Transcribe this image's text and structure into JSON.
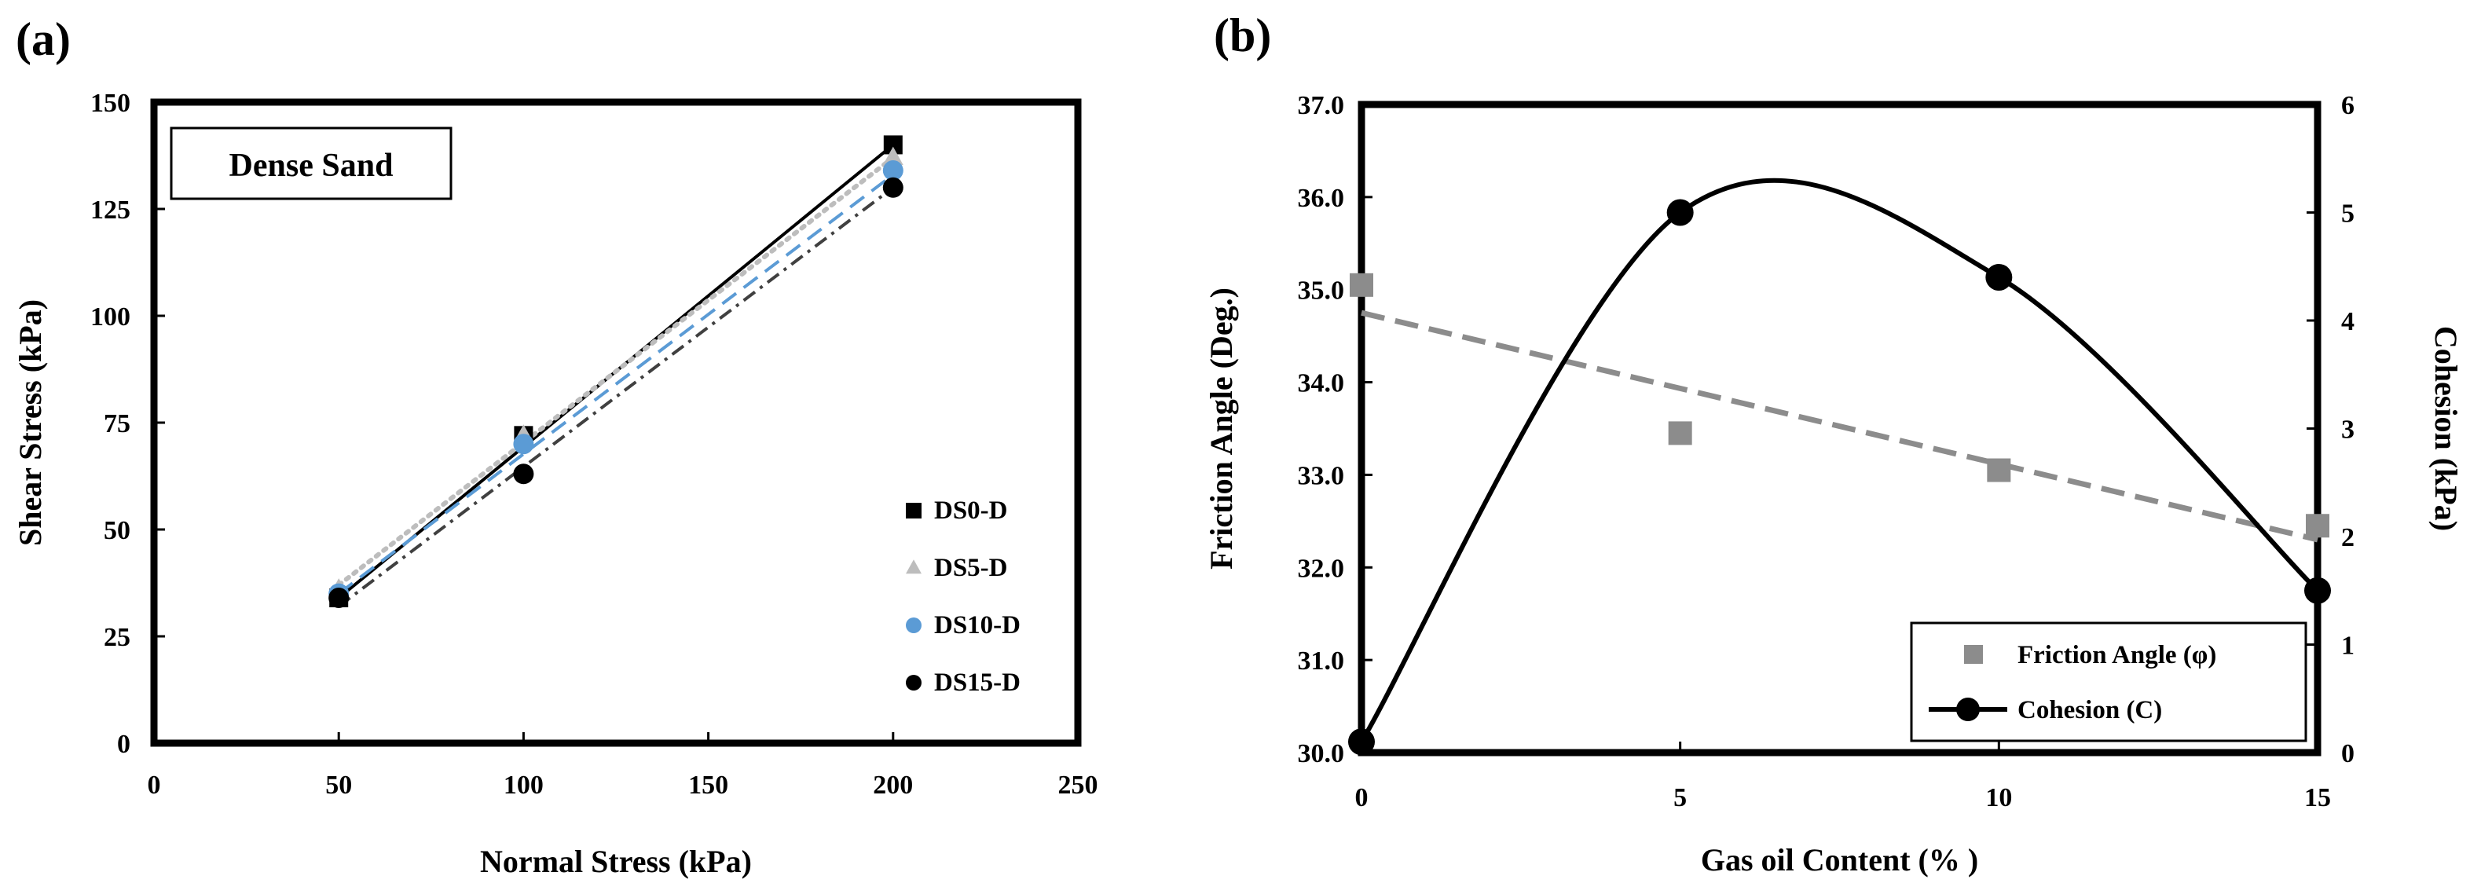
{
  "panels": {
    "a": {
      "label": "(a)"
    },
    "b": {
      "label": "(b)"
    }
  },
  "colors": {
    "ds0": "#000000",
    "ds5": "#bdbdbd",
    "ds10": "#5b9bd5",
    "ds15": "#000000",
    "friction": "#8c8c8c",
    "cohesion": "#000000"
  },
  "chart_data": [
    {
      "id": "a",
      "type": "scatter",
      "title": "",
      "xlabel": "Normal  Stress (kPa)",
      "ylabel": "Shear Stress (kPa)",
      "xlim": [
        0,
        250
      ],
      "ylim": [
        0,
        150
      ],
      "xticks": [
        0,
        50,
        100,
        150,
        200,
        250
      ],
      "yticks": [
        0,
        25,
        50,
        75,
        100,
        125,
        150
      ],
      "annotation": "Dense Sand",
      "legend_position": "bottom-right",
      "series": [
        {
          "name": "DS0-D",
          "marker": "square",
          "line": "solid",
          "x": [
            50,
            100,
            200
          ],
          "y": [
            34,
            72,
            140
          ],
          "fit": [
            [
              50,
              34
            ],
            [
              200,
              140
            ]
          ]
        },
        {
          "name": "DS5-D",
          "marker": "triangle",
          "line": "dotted",
          "x": [
            50,
            100,
            200
          ],
          "y": [
            36,
            72,
            137
          ],
          "fit": [
            [
              50,
              37
            ],
            [
              200,
              137
            ]
          ]
        },
        {
          "name": "DS10-D",
          "marker": "circle",
          "line": "dashed",
          "x": [
            50,
            100,
            200
          ],
          "y": [
            35,
            70,
            134
          ],
          "fit": [
            [
              50,
              35
            ],
            [
              200,
              133
            ]
          ]
        },
        {
          "name": "DS15-D",
          "marker": "circle",
          "line": "dashdot",
          "x": [
            50,
            100,
            200
          ],
          "y": [
            34,
            63,
            130
          ],
          "fit": [
            [
              50,
              32
            ],
            [
              200,
              130
            ]
          ]
        }
      ]
    },
    {
      "id": "b",
      "type": "line",
      "title": "",
      "xlabel": "Gas  oil Content  (% )",
      "ylabel_left": "Friction  Angle  (Deg.)",
      "ylabel_right": "Cohesion  (kPa)",
      "xlim": [
        0,
        15
      ],
      "ylim_left": [
        30.0,
        37.0
      ],
      "ylim_right": [
        0,
        6
      ],
      "xticks": [
        0,
        5,
        10,
        15
      ],
      "yticks_left": [
        "30.0",
        "31.0",
        "32.0",
        "33.0",
        "34.0",
        "35.0",
        "36.0",
        "37.0"
      ],
      "yticks_right": [
        0,
        1,
        2,
        3,
        4,
        5,
        6
      ],
      "legend_position": "bottom-right",
      "series": [
        {
          "name": "Friction Angle (φ)",
          "axis": "left",
          "marker": "square",
          "x": [
            0,
            5,
            10,
            15
          ],
          "y": [
            35.05,
            33.45,
            33.05,
            32.45
          ],
          "trend": [
            [
              0,
              34.75
            ],
            [
              15,
              32.3
            ]
          ]
        },
        {
          "name": "Cohesion (C)",
          "axis": "right",
          "marker": "circle",
          "x": [
            0,
            5,
            10,
            15
          ],
          "y": [
            0.1,
            5.0,
            4.4,
            1.5
          ],
          "smooth": true
        }
      ]
    }
  ]
}
